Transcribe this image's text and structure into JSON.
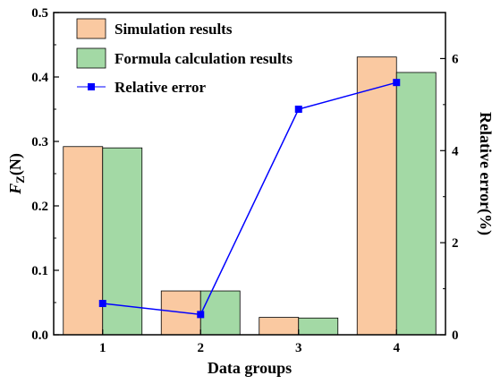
{
  "chart_data": {
    "type": "bar",
    "categories": [
      "1",
      "2",
      "3",
      "4"
    ],
    "xlabel": "Data groups",
    "ylabel": "Relative error(%)",
    "ylabel_left": {
      "italic": "F",
      "sub": "Z",
      "rest": "(N)"
    },
    "ylim": [
      0,
      0.5
    ],
    "y2lim": [
      0,
      7
    ],
    "yticks": [
      "0.0",
      "0.1",
      "0.2",
      "0.3",
      "0.4",
      "0.5"
    ],
    "y2ticks": [
      "0",
      "2",
      "4",
      "6"
    ],
    "series": [
      {
        "name": "Simulation results",
        "kind": "bar",
        "axis": "left",
        "color": "#FAC9A1",
        "values": [
          0.292,
          0.068,
          0.027,
          0.431
        ]
      },
      {
        "name": "Formula calculation results",
        "kind": "bar",
        "axis": "left",
        "color": "#A3D9A5",
        "values": [
          0.29,
          0.068,
          0.026,
          0.407
        ]
      },
      {
        "name": "Relative error",
        "kind": "line",
        "axis": "right",
        "color": "#0000FF",
        "values": [
          0.68,
          0.44,
          4.9,
          5.48
        ]
      }
    ],
    "legend_position": "top-left",
    "grid": false
  }
}
